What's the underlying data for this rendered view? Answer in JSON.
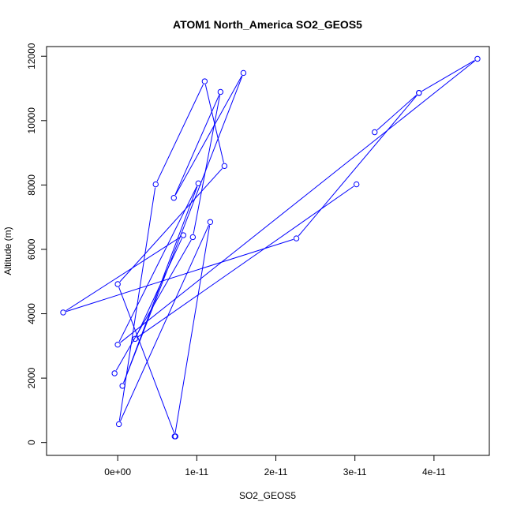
{
  "chart_data": {
    "type": "line",
    "title": "ATOM1 North_America SO2_GEOS5",
    "xlabel": "SO2_GEOS5",
    "ylabel": "Altitude (m)",
    "xlim": [
      -9e-12,
      4.7e-11
    ],
    "ylim": [
      -400,
      12300
    ],
    "x_ticks": [
      {
        "value": 0,
        "label": "0e+00"
      },
      {
        "value": 1e-11,
        "label": "1e-11"
      },
      {
        "value": 2e-11,
        "label": "2e-11"
      },
      {
        "value": 3e-11,
        "label": "3e-11"
      },
      {
        "value": 4e-11,
        "label": "4e-11"
      }
    ],
    "y_ticks": [
      {
        "value": 0,
        "label": "0"
      },
      {
        "value": 2000,
        "label": "2000"
      },
      {
        "value": 4000,
        "label": "4000"
      },
      {
        "value": 6000,
        "label": "6000"
      },
      {
        "value": 8000,
        "label": "8000"
      },
      {
        "value": 10000,
        "label": "10000"
      },
      {
        "value": 12000,
        "label": "12000"
      }
    ],
    "series": [
      {
        "color": "#0000ff",
        "points": [
          {
            "x": 7.3e-12,
            "y": 190
          },
          {
            "x": 0.0,
            "y": 4920
          },
          {
            "x": 1.35e-11,
            "y": 8590
          },
          {
            "x": 1.1e-11,
            "y": 11220
          },
          {
            "x": 4.8e-12,
            "y": 8020
          },
          {
            "x": 1.5e-13,
            "y": 570
          },
          {
            "x": 1.17e-11,
            "y": 6850
          },
          {
            "x": 7.2e-12,
            "y": 190
          }
        ]
      },
      {
        "color": "#0000ff",
        "points": [
          {
            "x": -4e-13,
            "y": 2150
          },
          {
            "x": 9.5e-12,
            "y": 6380
          },
          {
            "x": 1.3e-11,
            "y": 10890
          },
          {
            "x": 7.1e-12,
            "y": 7600
          },
          {
            "x": 1.59e-11,
            "y": 11480
          },
          {
            "x": 6e-13,
            "y": 1760
          },
          {
            "x": 1.02e-11,
            "y": 8050
          },
          {
            "x": 0.0,
            "y": 3040
          },
          {
            "x": 4.55e-11,
            "y": 11920
          },
          {
            "x": 3.81e-11,
            "y": 10860
          },
          {
            "x": 3.25e-11,
            "y": 9640
          }
        ]
      },
      {
        "color": "#0000ff",
        "points": [
          {
            "x": 3.81e-11,
            "y": 10860
          },
          {
            "x": 2.26e-11,
            "y": 6340
          },
          {
            "x": -6.9e-12,
            "y": 4040
          },
          {
            "x": 8.3e-12,
            "y": 6440
          },
          {
            "x": 2.2e-12,
            "y": 3220
          },
          {
            "x": 3.02e-11,
            "y": 8020
          }
        ]
      }
    ]
  }
}
